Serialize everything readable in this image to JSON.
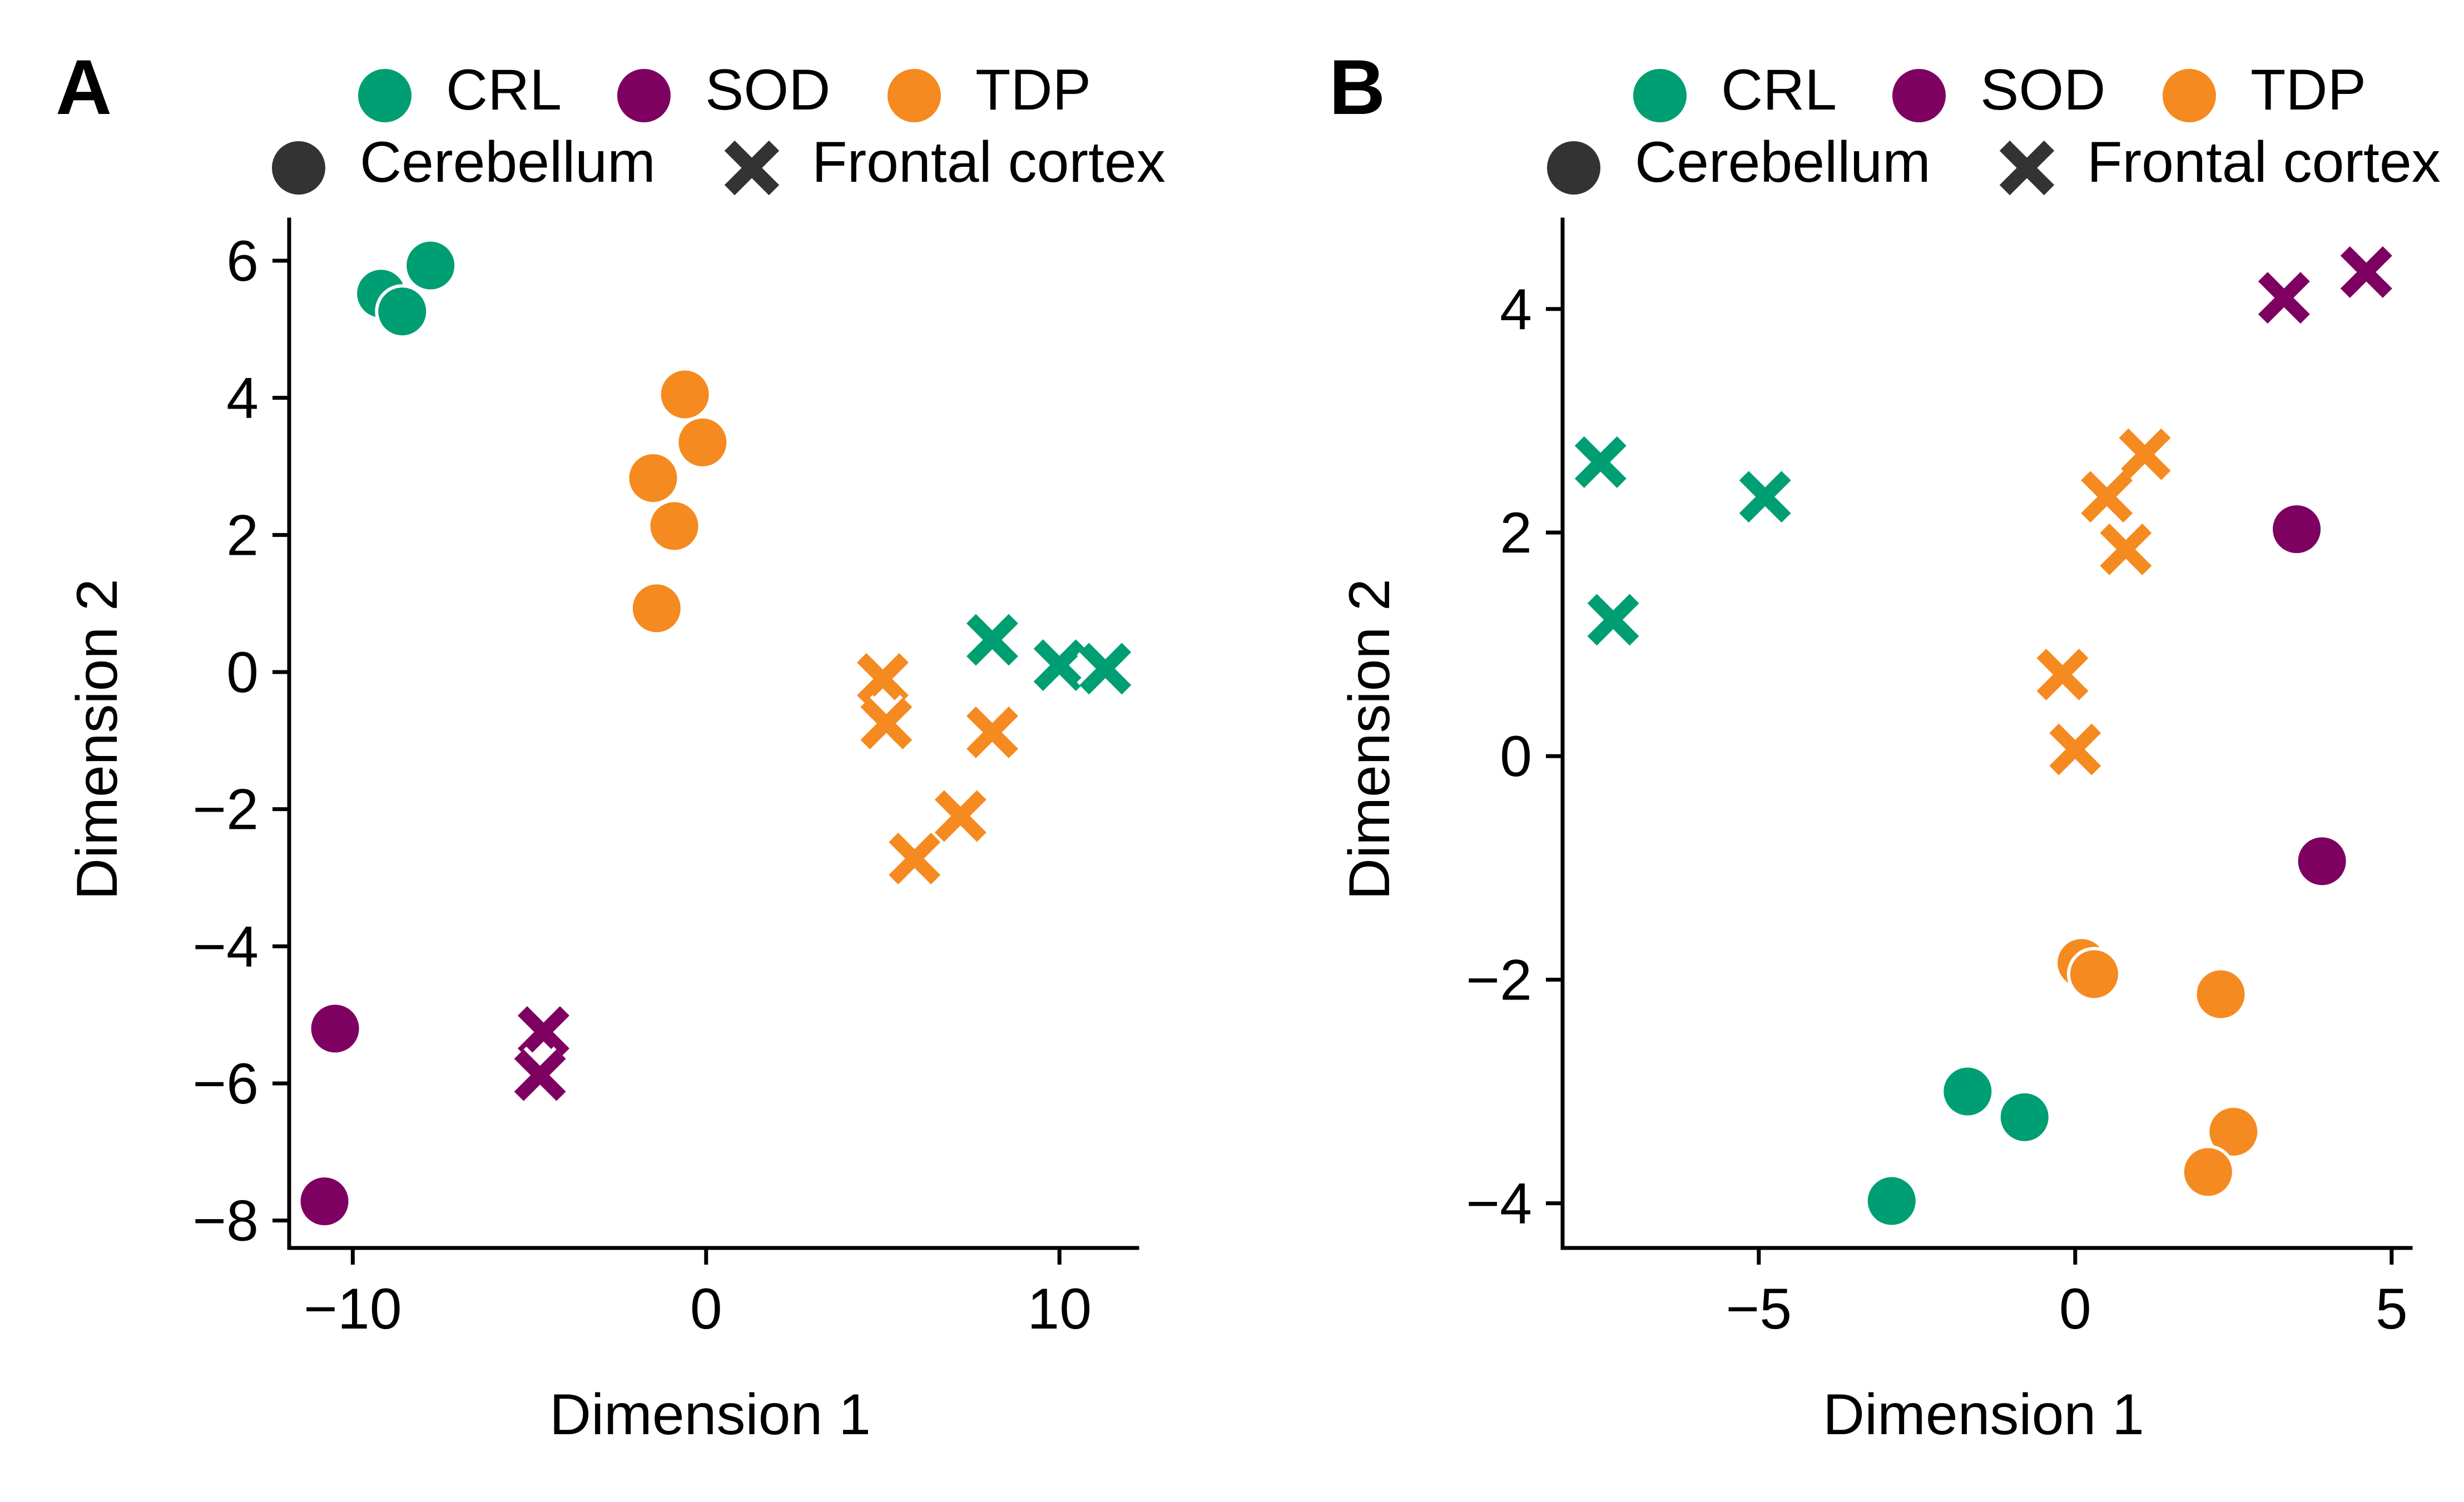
{
  "chart_data": [
    {
      "type": "scatter",
      "panel_label": "A",
      "xlabel": "Dimension 1",
      "ylabel": "Dimension 2",
      "xlim": [
        -11.8,
        12.2
      ],
      "ylim": [
        -8.4,
        6.6
      ],
      "xticks": [
        -10,
        0,
        10
      ],
      "yticks": [
        -8,
        -6,
        -4,
        -2,
        0,
        2,
        4,
        6
      ],
      "legend_colors": [
        {
          "name": "CRL",
          "color": "#009E73"
        },
        {
          "name": "SOD",
          "color": "#7E0061"
        },
        {
          "name": "TDP",
          "color": "#F58A20"
        }
      ],
      "legend_markers": [
        {
          "name": "Cerebellum",
          "marker": "circle"
        },
        {
          "name": "Frontal cortex",
          "marker": "x"
        }
      ],
      "series": [
        {
          "group": "CRL",
          "tissue": "Cerebellum",
          "points": [
            {
              "x": -9.2,
              "y": 5.52
            },
            {
              "x": -8.6,
              "y": 5.26
            },
            {
              "x": -7.8,
              "y": 5.93
            }
          ]
        },
        {
          "group": "CRL",
          "tissue": "Frontal cortex",
          "points": [
            {
              "x": 8.1,
              "y": 0.47
            },
            {
              "x": 10.0,
              "y": 0.1
            },
            {
              "x": 11.3,
              "y": 0.05
            }
          ]
        },
        {
          "group": "SOD",
          "tissue": "Cerebellum",
          "points": [
            {
              "x": -10.5,
              "y": -5.2
            },
            {
              "x": -10.8,
              "y": -7.72
            }
          ]
        },
        {
          "group": "SOD",
          "tissue": "Frontal cortex",
          "points": [
            {
              "x": -4.6,
              "y": -5.25
            },
            {
              "x": -4.7,
              "y": -5.88
            }
          ]
        },
        {
          "group": "TDP",
          "tissue": "Cerebellum",
          "points": [
            {
              "x": -0.6,
              "y": 4.05
            },
            {
              "x": -0.1,
              "y": 3.35
            },
            {
              "x": -1.5,
              "y": 2.83
            },
            {
              "x": -0.9,
              "y": 2.13
            },
            {
              "x": -1.4,
              "y": 0.93
            }
          ]
        },
        {
          "group": "TDP",
          "tissue": "Frontal cortex",
          "points": [
            {
              "x": 5.0,
              "y": -0.1
            },
            {
              "x": 5.1,
              "y": -0.75
            },
            {
              "x": 8.1,
              "y": -0.88
            },
            {
              "x": 7.2,
              "y": -2.1
            },
            {
              "x": 5.9,
              "y": -2.72
            }
          ]
        }
      ]
    },
    {
      "type": "scatter",
      "panel_label": "B",
      "xlabel": "Dimension 1",
      "ylabel": "Dimension 2",
      "xlim": [
        -8.1,
        5.3
      ],
      "ylim": [
        -4.4,
        4.8
      ],
      "xticks": [
        -5,
        0,
        5
      ],
      "yticks": [
        -4,
        -2,
        0,
        2,
        4
      ],
      "legend_colors": [
        {
          "name": "CRL",
          "color": "#009E73"
        },
        {
          "name": "SOD",
          "color": "#7E0061"
        },
        {
          "name": "TDP",
          "color": "#F58A20"
        }
      ],
      "legend_markers": [
        {
          "name": "Cerebellum",
          "marker": "circle"
        },
        {
          "name": "Frontal cortex",
          "marker": "x"
        }
      ],
      "series": [
        {
          "group": "CRL",
          "tissue": "Cerebellum",
          "points": [
            {
              "x": -1.7,
              "y": -3.0
            },
            {
              "x": -0.8,
              "y": -3.23
            },
            {
              "x": -2.9,
              "y": -3.98
            }
          ]
        },
        {
          "group": "CRL",
          "tissue": "Frontal cortex",
          "points": [
            {
              "x": -7.5,
              "y": 2.63
            },
            {
              "x": -4.9,
              "y": 2.32
            },
            {
              "x": -7.3,
              "y": 1.22
            }
          ]
        },
        {
          "group": "SOD",
          "tissue": "Cerebellum",
          "points": [
            {
              "x": 3.5,
              "y": 2.03
            },
            {
              "x": 3.9,
              "y": -0.94
            }
          ]
        },
        {
          "group": "SOD",
          "tissue": "Frontal cortex",
          "points": [
            {
              "x": 3.3,
              "y": 4.1
            },
            {
              "x": 4.6,
              "y": 4.33
            }
          ]
        },
        {
          "group": "TDP",
          "tissue": "Cerebellum",
          "points": [
            {
              "x": 0.1,
              "y": -1.85
            },
            {
              "x": 0.3,
              "y": -1.95
            },
            {
              "x": 2.3,
              "y": -2.13
            },
            {
              "x": 2.5,
              "y": -3.36
            },
            {
              "x": 2.1,
              "y": -3.72
            }
          ]
        },
        {
          "group": "TDP",
          "tissue": "Frontal cortex",
          "points": [
            {
              "x": 1.1,
              "y": 2.7
            },
            {
              "x": 0.5,
              "y": 2.32
            },
            {
              "x": 0.8,
              "y": 1.85
            },
            {
              "x": -0.2,
              "y": 0.73
            },
            {
              "x": 0.0,
              "y": 0.06
            }
          ]
        }
      ]
    }
  ]
}
